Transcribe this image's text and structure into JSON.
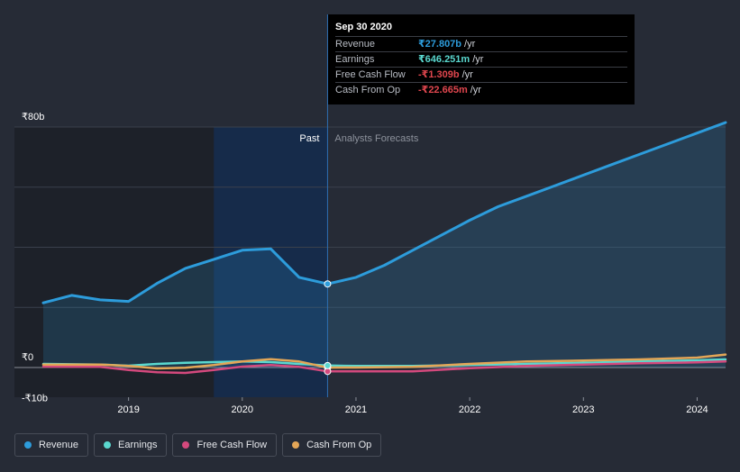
{
  "tooltip": {
    "date": "Sep 30 2020",
    "rows": [
      {
        "label": "Revenue",
        "value": "₹27.807b",
        "unit": "/yr",
        "color": "#2d9cdb"
      },
      {
        "label": "Earnings",
        "value": "₹646.251m",
        "unit": "/yr",
        "color": "#5ad8cf"
      },
      {
        "label": "Free Cash Flow",
        "value": "-₹1.309b",
        "unit": "/yr",
        "color": "#e0464e"
      },
      {
        "label": "Cash From Op",
        "value": "-₹22.665m",
        "unit": "/yr",
        "color": "#e0464e"
      }
    ]
  },
  "region": {
    "past": "Past",
    "forecast": "Analysts Forecasts"
  },
  "legend": [
    {
      "label": "Revenue",
      "color": "#2d9cdb"
    },
    {
      "label": "Earnings",
      "color": "#5ad8cf"
    },
    {
      "label": "Free Cash Flow",
      "color": "#d4497d"
    },
    {
      "label": "Cash From Op",
      "color": "#e3a657"
    }
  ],
  "chart_data": {
    "type": "line",
    "title": "",
    "xlabel": "",
    "ylabel": "",
    "y_unit": "₹ billions",
    "ylim": [
      -10,
      80
    ],
    "xlim": [
      2018.25,
      2024.25
    ],
    "y_tick_labels": [
      {
        "value": 80,
        "label": "₹80b"
      },
      {
        "value": 0,
        "label": "₹0"
      },
      {
        "value": -10,
        "label": "-₹10b"
      }
    ],
    "x_ticks": [
      {
        "value": 2019,
        "label": "2019"
      },
      {
        "value": 2020,
        "label": "2020"
      },
      {
        "value": 2021,
        "label": "2021"
      },
      {
        "value": 2022,
        "label": "2022"
      },
      {
        "value": 2023,
        "label": "2023"
      },
      {
        "value": 2024,
        "label": "2024"
      }
    ],
    "gridlines_y": [
      80,
      60,
      40,
      20,
      0
    ],
    "past_region": [
      2019.75,
      2020.75
    ],
    "divider_x": 2020.75,
    "series": [
      {
        "name": "Revenue",
        "color": "#2d9cdb",
        "fill": true,
        "x": [
          2018.25,
          2018.5,
          2018.75,
          2019.0,
          2019.25,
          2019.5,
          2019.75,
          2020.0,
          2020.25,
          2020.5,
          2020.75,
          2021.0,
          2021.25,
          2021.5,
          2022.0,
          2022.25,
          2022.5,
          2022.75,
          2023.0,
          2023.25,
          2023.5,
          2023.75,
          2024.0,
          2024.25
        ],
        "values": [
          21.5,
          24,
          22.5,
          22,
          28,
          33,
          36,
          39,
          39.5,
          30,
          27.8,
          30,
          34,
          39,
          49,
          53.5,
          57,
          60.5,
          64,
          67.5,
          71,
          74.5,
          78,
          81.5
        ]
      },
      {
        "name": "Earnings",
        "color": "#5ad8cf",
        "fill": false,
        "x": [
          2018.25,
          2018.75,
          2019.0,
          2019.25,
          2019.5,
          2019.75,
          2020.0,
          2020.25,
          2020.5,
          2020.75,
          2021.0,
          2021.5,
          2022.0,
          2022.5,
          2023.0,
          2023.5,
          2024.0,
          2024.25
        ],
        "values": [
          1.2,
          1.0,
          0.6,
          1.2,
          1.6,
          1.8,
          2.0,
          1.8,
          1.2,
          0.65,
          0.5,
          0.5,
          0.8,
          1.2,
          1.6,
          2.0,
          2.4,
          2.7
        ]
      },
      {
        "name": "Free Cash Flow",
        "color": "#d4497d",
        "fill": false,
        "x": [
          2018.25,
          2018.75,
          2019.0,
          2019.25,
          2019.5,
          2019.75,
          2020.0,
          2020.25,
          2020.5,
          2020.75,
          2021.0,
          2021.5,
          2022.0,
          2022.5,
          2023.0,
          2023.5,
          2024.0,
          2024.25
        ],
        "values": [
          0.3,
          0.2,
          -0.8,
          -1.6,
          -1.8,
          -0.8,
          0.3,
          0.8,
          0.2,
          -1.3,
          -1.3,
          -1.3,
          -0.2,
          0.5,
          1.0,
          1.4,
          1.7,
          2.0
        ]
      },
      {
        "name": "Cash From Op",
        "color": "#e3a657",
        "fill": false,
        "x": [
          2018.25,
          2018.75,
          2019.0,
          2019.25,
          2019.5,
          2019.75,
          2020.0,
          2020.25,
          2020.5,
          2020.75,
          2021.0,
          2021.5,
          2022.0,
          2022.5,
          2023.0,
          2023.5,
          2024.0,
          2024.25
        ],
        "values": [
          1.0,
          1.0,
          0.5,
          -0.3,
          -0.1,
          0.8,
          2.0,
          2.8,
          2.0,
          -0.02,
          0.0,
          0.2,
          1.2,
          2.0,
          2.3,
          2.7,
          3.3,
          4.3
        ]
      }
    ],
    "highlight_x": 2020.75
  }
}
